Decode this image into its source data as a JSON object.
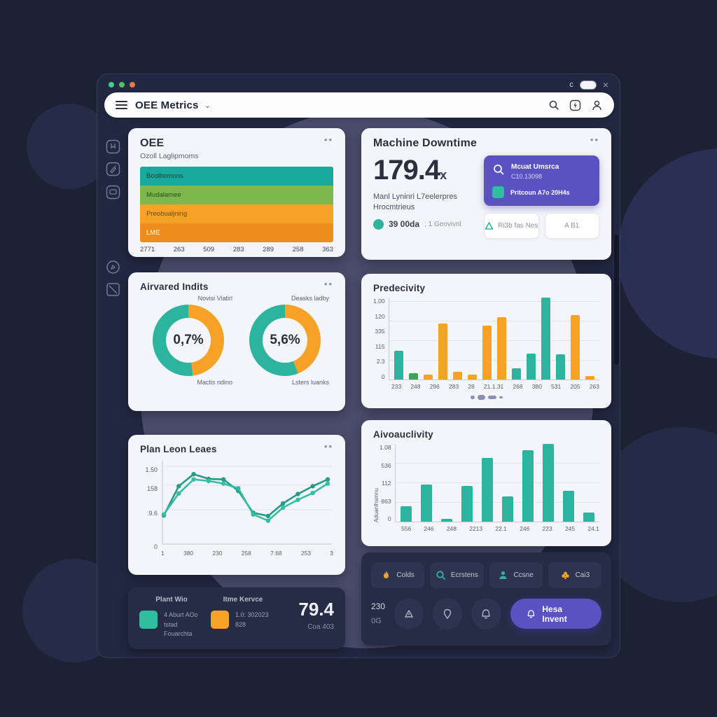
{
  "colors": {
    "teal": "#2cb49e",
    "teal_dark": "#17a89b",
    "green": "#7cb84c",
    "green_dark": "#3fa45b",
    "orange": "#f5a227",
    "orange_dark": "#ee8c1e",
    "purple": "#5a52c2"
  },
  "titlebar": {
    "traffic": [
      "#3ecf8e",
      "#53c45b",
      "#ef7a3a"
    ],
    "refresh": "c",
    "close": "×"
  },
  "header": {
    "title": "OEE Metrics"
  },
  "oee": {
    "title": "OEE",
    "subtitle": "Ozoll Laglipmoms",
    "menu": "••",
    "bars": [
      {
        "label": "Boolbomons",
        "color": "#17a89b",
        "text_color": "#1d453f"
      },
      {
        "label": "Mudalamee",
        "color": "#7cb84c",
        "text_color": "#2f4a1c"
      },
      {
        "label": "Preobualjning",
        "color": "#f5a227",
        "text_color": "#6b4a12"
      },
      {
        "label": "LME",
        "color": "#ee8c1e",
        "text_color": "#ffffff"
      }
    ],
    "x_labels": [
      "2771",
      "263",
      "509",
      "283",
      "289",
      "258",
      "363"
    ]
  },
  "downtime": {
    "title": "Machine Downtime",
    "menu": "••",
    "value": "179.4",
    "value_suffix": "x",
    "desc_line1": "Manl Lyninri L7eelerpres",
    "desc_line2": "Hrocmtrieus",
    "stat_value": "39 00da",
    "stat_extra": ";  1 Geovivnl",
    "panel": {
      "line1": "Mcuat Umsrca",
      "line2": "C10.13098",
      "line3": "Pritcoun A7o 20H4s"
    },
    "buttons": [
      {
        "label": "Ri3b fas Nes"
      },
      {
        "label": "A B1"
      }
    ]
  },
  "gauges": {
    "title": "Airvared Indits",
    "menu": "••",
    "donuts": [
      {
        "top_label": "Novisi Viatirl",
        "value": "0,7%",
        "bottom_label": "Mactis ndino",
        "orange_pct": 48
      },
      {
        "top_label": "Deasks ladby",
        "value": "5,6%",
        "bottom_label": "Lsters luanks",
        "orange_pct": 44
      }
    ]
  },
  "predictivity": {
    "title": "Predecivity",
    "chart_data": {
      "type": "bar",
      "y_ticks": [
        "1.00",
        "120",
        "335",
        "115",
        "2.3",
        "0"
      ],
      "x_ticks": [
        "233",
        "248",
        "296",
        "283",
        "28",
        "21.1.31",
        "268",
        "380",
        "531",
        "205",
        "263"
      ],
      "bars": [
        {
          "v": 35,
          "c": "teal"
        },
        {
          "v": 8,
          "c": "green_dark"
        },
        {
          "v": 6,
          "c": "orange"
        },
        {
          "v": 68,
          "c": "orange"
        },
        {
          "v": 9,
          "c": "orange"
        },
        {
          "v": 6,
          "c": "orange"
        },
        {
          "v": 66,
          "c": "orange"
        },
        {
          "v": 76,
          "c": "orange"
        },
        {
          "v": 14,
          "c": "teal"
        },
        {
          "v": 32,
          "c": "teal"
        },
        {
          "v": 100,
          "c": "teal"
        },
        {
          "v": 31,
          "c": "teal"
        },
        {
          "v": 79,
          "c": "orange"
        },
        {
          "v": 4,
          "c": "orange"
        }
      ]
    }
  },
  "lines": {
    "title": "Plan Leon Leaes",
    "menu": "••",
    "chart_data": {
      "type": "line",
      "y_ticks": [
        {
          "t": "1.50",
          "pos": 7
        },
        {
          "t": "158",
          "pos": 29
        },
        {
          "t": ".9.6",
          "pos": 57
        },
        {
          "t": "0",
          "pos": 96
        }
      ],
      "x_ticks": [
        "1",
        "380",
        "230",
        "258",
        "7.68",
        "253",
        "3"
      ],
      "ymax": 150,
      "series": [
        {
          "name": "series-1",
          "values": [
            52,
            108,
            131,
            122,
            121,
            99,
            57,
            51,
            75,
            93,
            108,
            121
          ],
          "color": "#259b88"
        },
        {
          "name": "series-2",
          "values": [
            54,
            94,
            121,
            118,
            113,
            104,
            54,
            42,
            67,
            82,
            95,
            113
          ],
          "color": "#35bda6"
        }
      ]
    }
  },
  "avo": {
    "title": "Aivoauclivity",
    "ylabel": "Aduanlhsmnu",
    "chart_data": {
      "type": "bar",
      "y_ticks": [
        "1.08",
        "536",
        "112",
        "863",
        "0"
      ],
      "x_ticks": [
        "556",
        "246",
        "248",
        "2213",
        "22.1",
        "246",
        "223",
        "245",
        "24.1"
      ],
      "values": [
        20,
        48,
        4,
        46,
        82,
        32,
        92,
        100,
        40,
        12
      ],
      "color": "#2cb49e"
    }
  },
  "summary": {
    "col1_header": "Plant Wio",
    "col2_header": "Itme Kervce",
    "legend1_line1": "4 Aburt AOo tstad",
    "legend1_line2": "Fouarchta",
    "legend2_line1": "1.0: 302023",
    "legend2_line2": "828",
    "value": "79.4",
    "value_sub": "Coa 403"
  },
  "actions": {
    "chips": [
      {
        "label": "Colds",
        "icon": "flame",
        "color": "#f5a227"
      },
      {
        "label": "Ecrstens",
        "icon": "search",
        "color": "#2cb49e"
      },
      {
        "label": "Ccsne",
        "icon": "person",
        "color": "#2cb49e"
      },
      {
        "label": "Cai3",
        "icon": "club",
        "color": "#f5a227"
      }
    ],
    "counter1": "230",
    "counter2": "0G",
    "primary_label": "Hesa Invent"
  }
}
